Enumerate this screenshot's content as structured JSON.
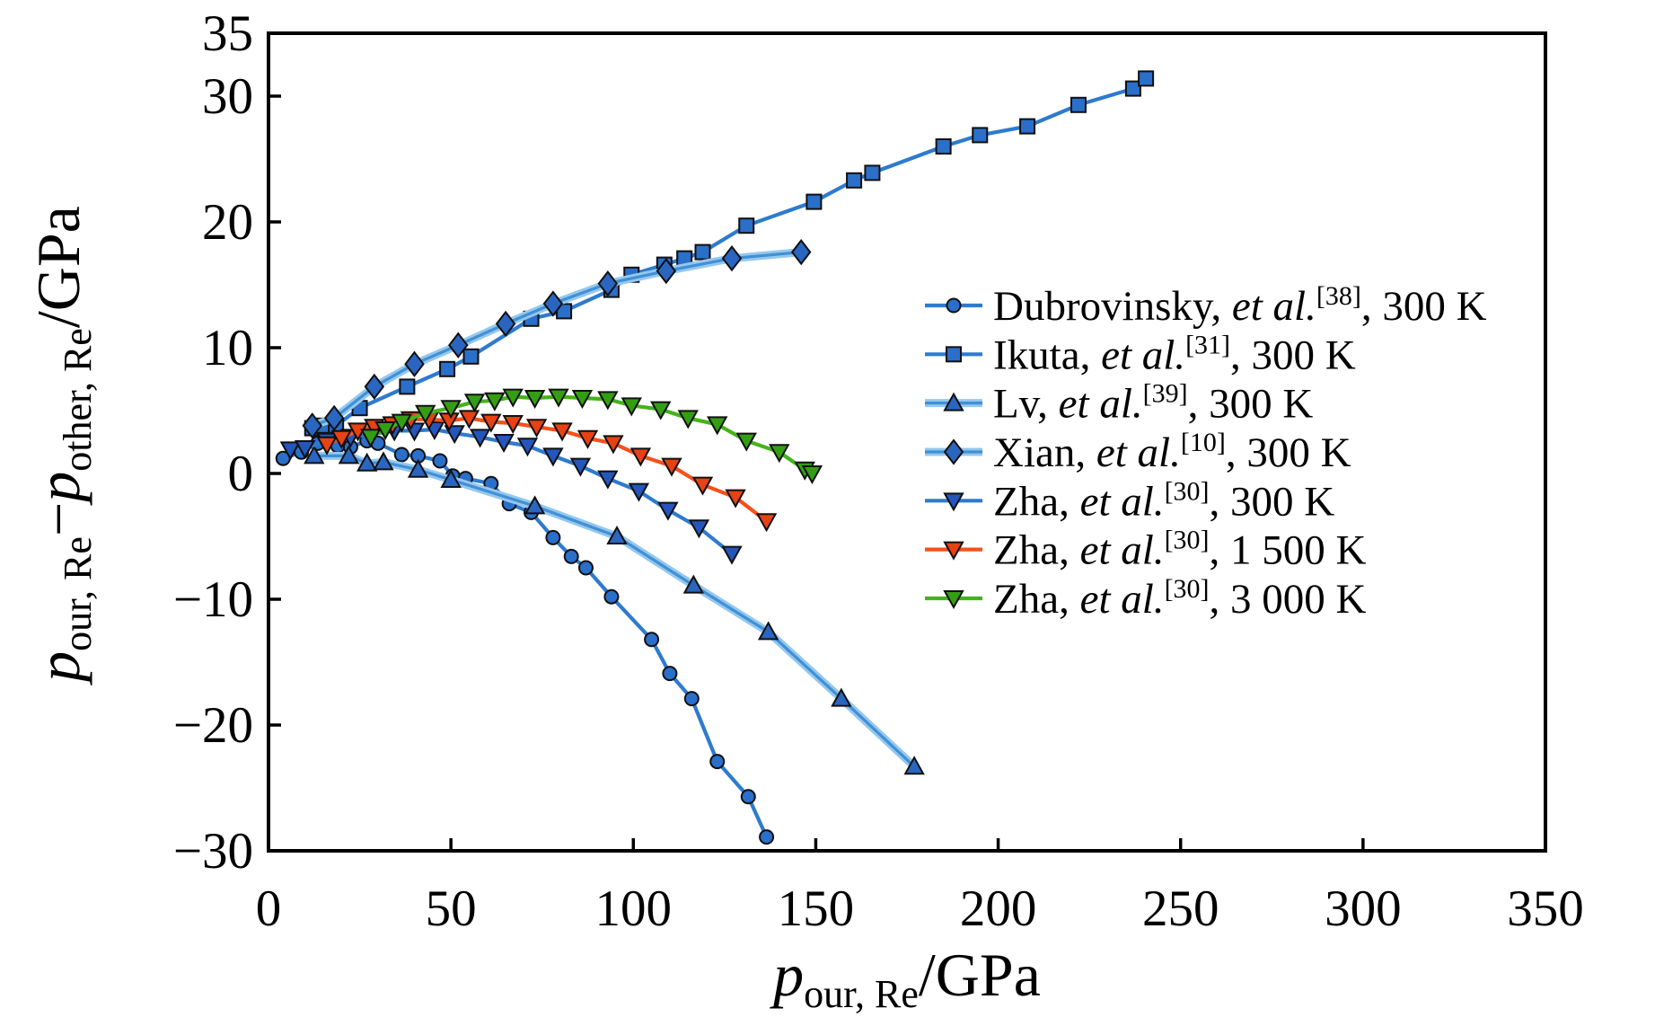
{
  "figure": {
    "background": "#ffffff"
  },
  "chart_data": {
    "type": "line",
    "title": "",
    "xlabel_parts": {
      "p": "p",
      "sub": "our, Re",
      "unit": "/GPa"
    },
    "ylabel_parts": {
      "p1": "p",
      "sub1": "our, Re",
      "minus": "−",
      "p2": "p",
      "sub2": "other, Re",
      "unit": "/GPa"
    },
    "xlim": [
      0,
      350
    ],
    "ylim": [
      -30,
      35
    ],
    "xticks": [
      0,
      50,
      100,
      150,
      200,
      250,
      300,
      350
    ],
    "yticks": [
      -30,
      -20,
      -10,
      0,
      10,
      20,
      30
    ],
    "y_top_label": "35",
    "grid": false,
    "legend_position": "upper-right-inside",
    "frame_color": "#000000",
    "series": [
      {
        "id": "dubrovinsky-300k",
        "label_parts": {
          "name": "Dubrovinsky, ",
          "etal": "et al.",
          "ref": "[38]",
          "suffix": ", 300 K"
        },
        "marker": "circle",
        "line_color": "#2e7bce",
        "marker_color": "#2a6fca",
        "points": [
          [
            4,
            1.2
          ],
          [
            9,
            1.7
          ],
          [
            13.5,
            2.4
          ],
          [
            19,
            2.2
          ],
          [
            22.5,
            2.1
          ],
          [
            27,
            2.6
          ],
          [
            30,
            2.4
          ],
          [
            36.5,
            1.5
          ],
          [
            41,
            1.4
          ],
          [
            47,
            1.0
          ],
          [
            50.5,
            -0.2
          ],
          [
            54,
            -0.4
          ],
          [
            61,
            -0.8
          ],
          [
            66,
            -2.4
          ],
          [
            72,
            -3.1
          ],
          [
            78,
            -5.1
          ],
          [
            83,
            -6.6
          ],
          [
            87,
            -7.5
          ],
          [
            94,
            -9.8
          ],
          [
            105,
            -13.2
          ],
          [
            110,
            -15.9
          ],
          [
            116,
            -17.9
          ],
          [
            123,
            -22.9
          ],
          [
            131.5,
            -25.7
          ],
          [
            136.5,
            -28.9
          ]
        ]
      },
      {
        "id": "ikuta-300k",
        "label_parts": {
          "name": "Ikuta, ",
          "etal": "et al.",
          "ref": "[31]",
          "suffix": ", 300 K"
        },
        "marker": "square",
        "line_color": "#2e7bce",
        "marker_color": "#2a6fca",
        "points": [
          [
            12,
            3.6
          ],
          [
            15,
            3.8
          ],
          [
            18.5,
            3.8
          ],
          [
            25,
            5.2
          ],
          [
            38,
            6.9
          ],
          [
            49,
            8.3
          ],
          [
            55.5,
            9.3
          ],
          [
            72,
            12.3
          ],
          [
            81,
            12.9
          ],
          [
            94,
            14.6
          ],
          [
            99.5,
            15.8
          ],
          [
            108.5,
            16.6
          ],
          [
            114,
            17.1
          ],
          [
            119,
            17.6
          ],
          [
            131,
            19.7
          ],
          [
            149.5,
            21.6
          ],
          [
            160.5,
            23.3
          ],
          [
            165.5,
            23.9
          ],
          [
            185,
            26.0
          ],
          [
            195,
            26.9
          ],
          [
            208,
            27.6
          ],
          [
            222,
            29.3
          ],
          [
            237,
            30.6
          ],
          [
            240.5,
            31.4
          ]
        ]
      },
      {
        "id": "lv-300k",
        "label_parts": {
          "name": "Lv, ",
          "etal": "et al.",
          "ref": "[39]",
          "suffix": ", 300 K"
        },
        "marker": "triangle-up",
        "line_color": "#4090d6",
        "halo_color": "#95c8ee",
        "marker_color": "#2a66c0",
        "points": [
          [
            12.5,
            1.4
          ],
          [
            22,
            1.4
          ],
          [
            27,
            0.8
          ],
          [
            31.5,
            0.9
          ],
          [
            41,
            0.3
          ],
          [
            50,
            -0.5
          ],
          [
            73,
            -2.6
          ],
          [
            95.5,
            -5.0
          ],
          [
            116.5,
            -8.9
          ],
          [
            137,
            -12.6
          ],
          [
            157,
            -17.9
          ],
          [
            177,
            -23.3
          ]
        ]
      },
      {
        "id": "xian-300k",
        "label_parts": {
          "name": "Xian, ",
          "etal": "et al.",
          "ref": "[10]",
          "suffix": ", 300 K"
        },
        "marker": "diamond",
        "line_color": "#4090d6",
        "halo_color": "#95c8ee",
        "marker_color": "#2a66c0",
        "points": [
          [
            12,
            3.8
          ],
          [
            18,
            4.4
          ],
          [
            29,
            6.9
          ],
          [
            40,
            8.7
          ],
          [
            52,
            10.2
          ],
          [
            65,
            11.9
          ],
          [
            78,
            13.5
          ],
          [
            93,
            15.1
          ],
          [
            109,
            16.1
          ],
          [
            127,
            17.1
          ],
          [
            146,
            17.6
          ]
        ]
      },
      {
        "id": "zha-300k",
        "label_parts": {
          "name": "Zha, ",
          "etal": "et al.",
          "ref": "[30]",
          "suffix": ", 300 K"
        },
        "marker": "triangle-down",
        "line_color": "#2e7bce",
        "marker_color": "#2456bc",
        "points": [
          [
            6,
            1.9
          ],
          [
            10,
            2.0
          ],
          [
            16,
            2.6
          ],
          [
            22.5,
            2.9
          ],
          [
            28,
            3.1
          ],
          [
            34.5,
            3.4
          ],
          [
            40,
            3.4
          ],
          [
            45.5,
            3.5
          ],
          [
            51,
            3.2
          ],
          [
            58,
            2.9
          ],
          [
            64.5,
            2.5
          ],
          [
            71,
            2.2
          ],
          [
            78,
            1.4
          ],
          [
            85.5,
            0.6
          ],
          [
            93,
            -0.4
          ],
          [
            101.5,
            -1.4
          ],
          [
            109.5,
            -2.9
          ],
          [
            118,
            -4.3
          ],
          [
            127,
            -6.4
          ]
        ]
      },
      {
        "id": "zha-1500k",
        "label_parts": {
          "name": "Zha, ",
          "etal": "et al.",
          "ref": "[30]",
          "suffix": ", 1 500 K"
        },
        "marker": "triangle-down",
        "line_color": "#f4511c",
        "marker_color": "#e64214",
        "points": [
          [
            16,
            2.3
          ],
          [
            20,
            2.8
          ],
          [
            24.5,
            3.4
          ],
          [
            29,
            3.7
          ],
          [
            34,
            3.9
          ],
          [
            39,
            4.3
          ],
          [
            44,
            4.3
          ],
          [
            49.5,
            4.2
          ],
          [
            55,
            4.4
          ],
          [
            61,
            4.1
          ],
          [
            67,
            4.0
          ],
          [
            73.5,
            3.7
          ],
          [
            80.5,
            3.4
          ],
          [
            87.5,
            2.8
          ],
          [
            94.5,
            2.4
          ],
          [
            102,
            1.4
          ],
          [
            110.5,
            0.6
          ],
          [
            119,
            -0.9
          ],
          [
            128,
            -1.9
          ],
          [
            136.5,
            -3.8
          ]
        ]
      },
      {
        "id": "zha-3000k",
        "label_parts": {
          "name": "Zha, ",
          "etal": "et al.",
          "ref": "[30]",
          "suffix": ", 3 000 K"
        },
        "marker": "triangle-down",
        "line_color": "#44b31c",
        "marker_color": "#349e12",
        "points": [
          [
            28,
            2.9
          ],
          [
            32,
            3.5
          ],
          [
            36.5,
            4.1
          ],
          [
            43,
            4.8
          ],
          [
            50,
            5.2
          ],
          [
            56.5,
            5.7
          ],
          [
            62,
            5.8
          ],
          [
            67,
            6.1
          ],
          [
            73,
            6.0
          ],
          [
            79.5,
            6.1
          ],
          [
            86,
            6.0
          ],
          [
            93,
            5.9
          ],
          [
            99.5,
            5.4
          ],
          [
            107.5,
            5.1
          ],
          [
            115,
            4.4
          ],
          [
            123,
            3.9
          ],
          [
            131,
            2.6
          ],
          [
            140,
            1.7
          ],
          [
            147,
            0.3
          ],
          [
            149,
            0.0
          ]
        ]
      }
    ]
  }
}
